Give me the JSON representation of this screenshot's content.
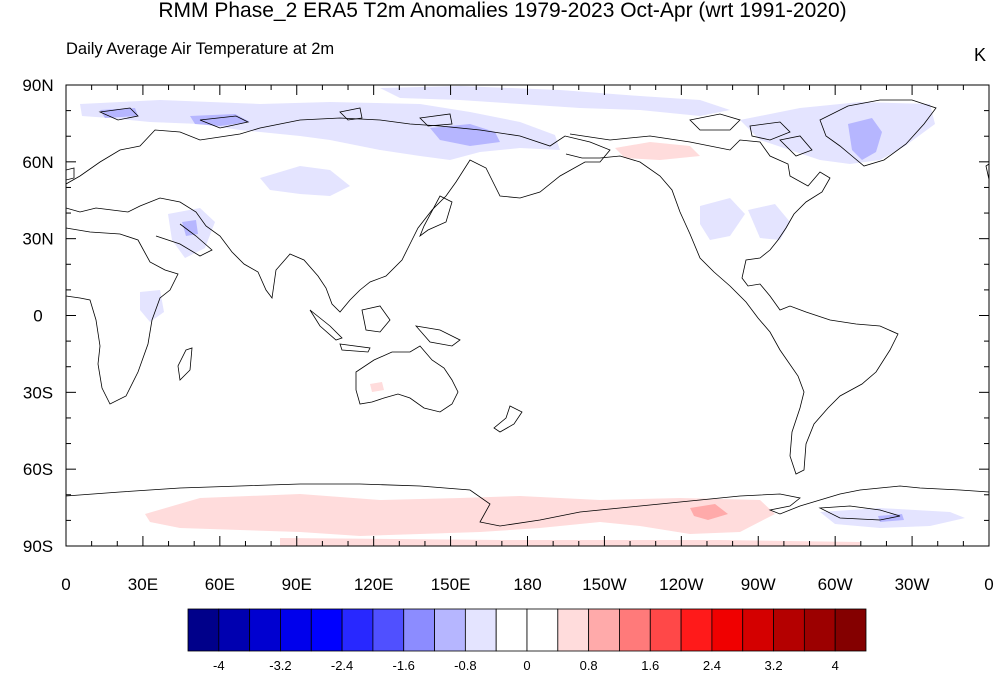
{
  "header": {
    "title": "RMM Phase_2 ERA5 T2m Anomalies 1979-2023 Oct-Apr (wrt 1991-2020)",
    "subtitle": "Daily Average Air Temperature at 2m",
    "units": "K"
  },
  "map": {
    "lat_labels": [
      "90N",
      "60N",
      "30N",
      "0",
      "30S",
      "60S",
      "90S"
    ],
    "lon_labels": [
      "0",
      "30E",
      "60E",
      "90E",
      "120E",
      "150E",
      "180",
      "150W",
      "120W",
      "90W",
      "60W",
      "30W",
      "0"
    ]
  },
  "colorbar": {
    "colors": [
      "#00008a",
      "#0000b0",
      "#0000d0",
      "#0000ec",
      "#0000ff",
      "#2828ff",
      "#5050ff",
      "#8c8cff",
      "#b6b6ff",
      "#e4e4ff",
      "#ffffff",
      "#ffffff",
      "#ffdcdc",
      "#ffaaaa",
      "#ff7a7a",
      "#ff4848",
      "#ff1a1a",
      "#f00000",
      "#d40000",
      "#b40000",
      "#9c0000",
      "#840000"
    ],
    "labels": [
      "-4",
      "-3.2",
      "-2.4",
      "-1.6",
      "-0.8",
      "0",
      "0.8",
      "1.6",
      "2.4",
      "3.2",
      "4"
    ]
  }
}
